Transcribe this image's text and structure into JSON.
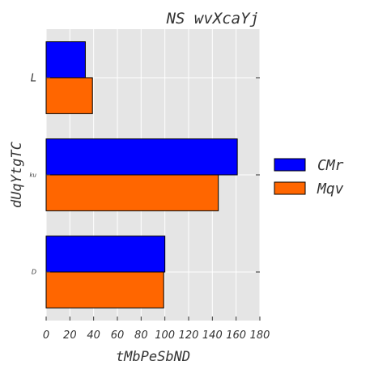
{
  "chart_data": {
    "type": "bar",
    "orientation": "horizontal",
    "title": "NS wvXcaYj",
    "xlabel": "tMbPeSbND",
    "ylabel": "dUqYtgTC",
    "categories": [
      "L",
      "ku",
      "D"
    ],
    "series": [
      {
        "name": "CMr",
        "color": "#0000ff",
        "values": [
          33,
          161,
          100
        ]
      },
      {
        "name": "Mqv",
        "color": "#ff6600",
        "values": [
          39,
          145,
          99
        ]
      }
    ],
    "xlim": [
      0,
      180
    ],
    "xticks": [
      "0",
      "20",
      "40",
      "60",
      "80",
      "100",
      "120",
      "140",
      "160",
      "180"
    ],
    "grid": true,
    "legend_position": "right",
    "background": "#e5e5e5"
  }
}
